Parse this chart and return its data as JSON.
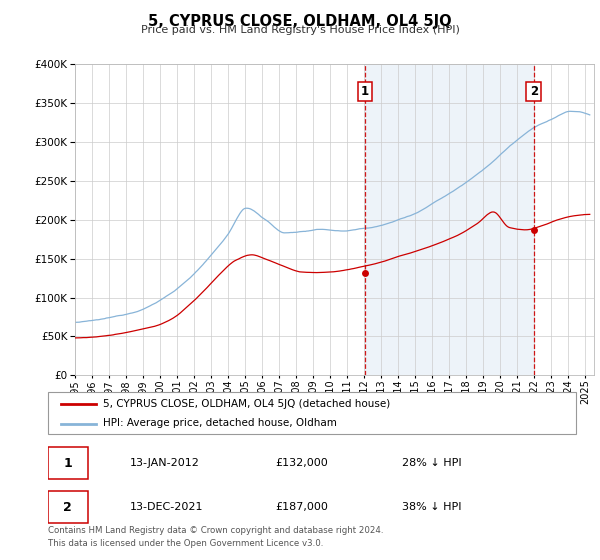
{
  "title": "5, CYPRUS CLOSE, OLDHAM, OL4 5JQ",
  "subtitle": "Price paid vs. HM Land Registry's House Price Index (HPI)",
  "ylim": [
    0,
    400000
  ],
  "yticks": [
    0,
    50000,
    100000,
    150000,
    200000,
    250000,
    300000,
    350000,
    400000
  ],
  "xlim_start": 1995.0,
  "xlim_end": 2025.5,
  "annotation1": {
    "label": "1",
    "date": 2012.04,
    "price": 132000
  },
  "annotation2": {
    "label": "2",
    "date": 2021.96,
    "price": 187000
  },
  "legend_property_label": "5, CYPRUS CLOSE, OLDHAM, OL4 5JQ (detached house)",
  "legend_hpi_label": "HPI: Average price, detached house, Oldham",
  "property_color": "#cc0000",
  "hpi_color": "#88b4d8",
  "hpi_fill_color": "#dce9f5",
  "vline_color": "#cc0000",
  "grid_color": "#cccccc",
  "bg_color": "#ffffff",
  "footer1": "Contains HM Land Registry data © Crown copyright and database right 2024.",
  "footer2": "This data is licensed under the Open Government Licence v3.0.",
  "table_rows": [
    {
      "label": "1",
      "date": "13-JAN-2012",
      "price": "£132,000",
      "pct": "28% ↓ HPI"
    },
    {
      "label": "2",
      "date": "13-DEC-2021",
      "price": "£187,000",
      "pct": "38% ↓ HPI"
    }
  ]
}
